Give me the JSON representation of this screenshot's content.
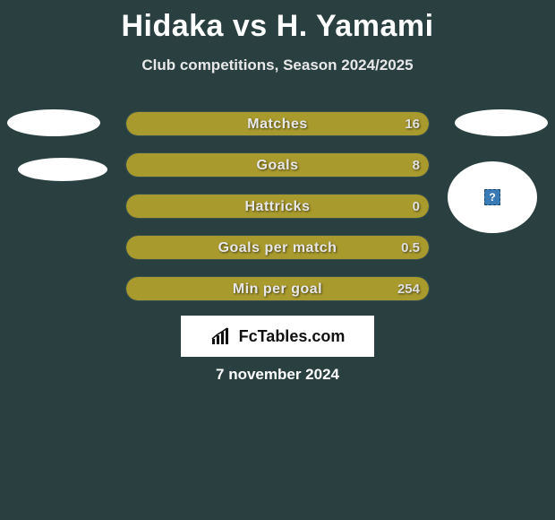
{
  "title": {
    "player1": "Hidaka",
    "vs": "vs",
    "player2": "H. Yamami"
  },
  "subtitle": "Club competitions, Season 2024/2025",
  "colors": {
    "background": "#2a4040",
    "fill": "#a99a2e",
    "text": "#e8e8e8",
    "white": "#ffffff"
  },
  "stats": [
    {
      "label": "Matches",
      "right_value": "16",
      "fill_pct": 100
    },
    {
      "label": "Goals",
      "right_value": "8",
      "fill_pct": 100
    },
    {
      "label": "Hattricks",
      "right_value": "0",
      "fill_pct": 100
    },
    {
      "label": "Goals per match",
      "right_value": "0.5",
      "fill_pct": 100
    },
    {
      "label": "Min per goal",
      "right_value": "254",
      "fill_pct": 100
    }
  ],
  "brand": {
    "name": "FcTables.com"
  },
  "date": "7 november 2024",
  "avatar_placeholder": "?"
}
